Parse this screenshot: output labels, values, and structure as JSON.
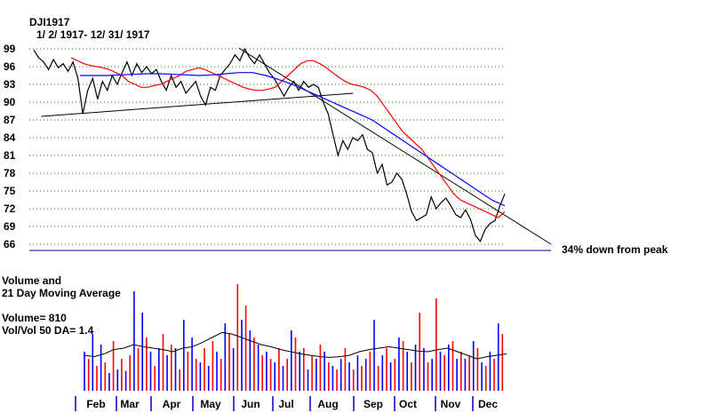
{
  "chart_data": [
    {
      "type": "line",
      "title": "DJI1917",
      "subtitle": "1/ 2/ 1917- 12/ 31/ 1917",
      "xlabel": "",
      "ylabel": "",
      "ylim": [
        66,
        99
      ],
      "y_ticks": [
        "99",
        "96",
        "93",
        "90",
        "87",
        "84",
        "81",
        "78",
        "75",
        "72",
        "69",
        "66"
      ],
      "x_ticks": [
        "Feb",
        "Mar",
        "Apr",
        "May",
        "Jun",
        "Jul",
        "Aug",
        "Sep",
        "Oct",
        "Nov",
        "Dec"
      ],
      "grid": true,
      "annotation": "34% down from peak",
      "series": [
        {
          "color": "#000000",
          "values": [
            98.8,
            97.5,
            96.8,
            95.5,
            97.2,
            95.8,
            96.5,
            95.2,
            96.8,
            94.0,
            88.0,
            92.0,
            94.0,
            90.5,
            93.5,
            92.0,
            94.5,
            93.0,
            95.0,
            96.8,
            94.5,
            96.5,
            95.0,
            96.0,
            94.8,
            95.5,
            93.5,
            92.0,
            94.5,
            92.5,
            93.5,
            91.5,
            92.5,
            93.5,
            91.0,
            89.5,
            92.5,
            92.0,
            94.5,
            95.5,
            96.5,
            98.0,
            97.0,
            99.0,
            97.5,
            96.5,
            98.0,
            96.5,
            95.0,
            94.0,
            92.5,
            91.0,
            92.5,
            93.5,
            92.0,
            93.5,
            92.5,
            93.0,
            92.5,
            90.0,
            88.0,
            84.5,
            81.0,
            83.5,
            82.0,
            84.0,
            83.5,
            84.5,
            82.0,
            81.5,
            78.0,
            79.5,
            76.0,
            76.5,
            78.0,
            77.0,
            74.5,
            71.5,
            70.0,
            70.5,
            71.0,
            74.0,
            72.0,
            73.0,
            73.8,
            72.5,
            71.0,
            70.5,
            71.8,
            70.2,
            67.5,
            66.5,
            68.5,
            69.5,
            70.0,
            72.5,
            74.5
          ]
        },
        {
          "color": "#ff0000",
          "values": [
            97.5,
            97.0,
            96.5,
            96.2,
            96.0,
            95.8,
            95.5,
            95.0,
            94.5,
            93.5,
            93.0,
            92.5,
            92.5,
            92.8,
            93.0,
            93.5,
            94.0,
            94.5,
            95.2,
            95.5,
            95.8,
            95.5,
            95.0,
            94.5,
            94.0,
            93.5,
            93.0,
            92.5,
            92.2,
            92.0,
            92.0,
            92.2,
            92.5,
            93.5,
            94.5,
            95.5,
            96.5,
            97.0,
            97.0,
            96.5,
            95.8,
            95.0,
            94.2,
            93.5,
            93.0,
            92.8,
            92.5,
            92.0,
            91.0,
            89.5,
            88.0,
            86.5,
            85.0,
            84.0,
            83.0,
            82.0,
            80.5,
            79.0,
            77.5,
            76.0,
            74.5,
            73.5,
            73.0,
            72.5,
            72.0,
            71.5,
            71.0,
            70.5,
            71.5
          ]
        },
        {
          "color": "#0000ff",
          "values": [
            94.5,
            94.5,
            94.5,
            94.6,
            94.7,
            94.8,
            94.8,
            94.7,
            94.6,
            94.5,
            94.6,
            94.8,
            95.0,
            95.0,
            94.5,
            93.8,
            93.0,
            92.0,
            91.0,
            90.0,
            89.0,
            88.0,
            87.0,
            85.5,
            84.0,
            82.5,
            81.0,
            79.5,
            78.0,
            76.5,
            75.0,
            73.5,
            72.5
          ]
        }
      ],
      "trendlines": [
        {
          "color": "#000000",
          "points": [
            [
              1,
              87.6
            ],
            [
              42,
              91.5
            ]
          ]
        },
        {
          "color": "#000000",
          "points": [
            [
              27,
              99.1
            ],
            [
              68,
              66.0
            ]
          ]
        }
      ]
    },
    {
      "type": "bar",
      "title": "Volume and",
      "subtitle": "21 Day Moving Average",
      "annotations": [
        "Volume= 810",
        "Vol/Vol 50 DA= 1.4"
      ],
      "x_ticks": [
        "Feb",
        "Mar",
        "Apr",
        "May",
        "Jun",
        "Jul",
        "Aug",
        "Sep",
        "Oct",
        "Nov",
        "Dec"
      ],
      "series": [
        {
          "name": "Volume",
          "colors": [
            "#0000ff",
            "#ff0000"
          ],
          "values": [
            55,
            45,
            80,
            35,
            65,
            40,
            25,
            70,
            30,
            45,
            28,
            50,
            140,
            60,
            110,
            75,
            55,
            35,
            60,
            80,
            50,
            65,
            60,
            30,
            100,
            55,
            75,
            45,
            40,
            60,
            35,
            70,
            55,
            45,
            95,
            80,
            60,
            150,
            100,
            120,
            85,
            75,
            65,
            50,
            55,
            45,
            40,
            60,
            35,
            45,
            85,
            75,
            55,
            60,
            30,
            50,
            45,
            65,
            55,
            40,
            35,
            30,
            45,
            60,
            40,
            30,
            50,
            35,
            45,
            55,
            100,
            35,
            50,
            60,
            40,
            45,
            75,
            70,
            55,
            40,
            65,
            110,
            60,
            40,
            45,
            130,
            55,
            50,
            65,
            70,
            45,
            55,
            45,
            50,
            70,
            60,
            40,
            35,
            55,
            45,
            95,
            80
          ],
          "value_unit": "bar height relative to 0-150 scale"
        },
        {
          "name": "21 Day Moving Average",
          "color": "#000000",
          "values": [
            50,
            48,
            52,
            58,
            60,
            65,
            62,
            60,
            58,
            55,
            60,
            62,
            68,
            75,
            82,
            80,
            75,
            70,
            65,
            62,
            58,
            55,
            52,
            50,
            48,
            47,
            48,
            50,
            55,
            58,
            60,
            62,
            60,
            58,
            56,
            55,
            58,
            60,
            55,
            50,
            45,
            48,
            50,
            52
          ]
        }
      ]
    }
  ]
}
